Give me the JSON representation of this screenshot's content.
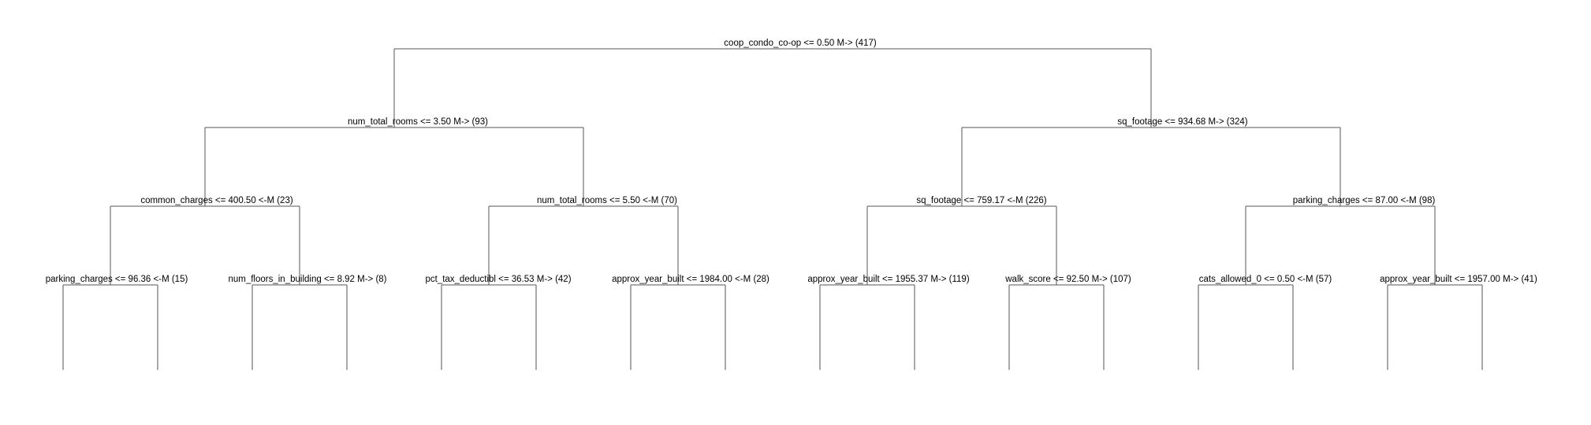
{
  "nodes": [
    {
      "id": "root",
      "label": "coop_condo_co-op <= 0.50 M-> (417)"
    },
    {
      "id": "n-l",
      "label": "num_total_rooms <= 3.50 M-> (93)"
    },
    {
      "id": "n-r",
      "label": "sq_footage <= 934.68 M-> (324)"
    },
    {
      "id": "n-ll",
      "label": "common_charges <= 400.50 <-M (23)"
    },
    {
      "id": "n-lr",
      "label": "num_total_rooms <= 5.50 <-M (70)"
    },
    {
      "id": "n-rl",
      "label": "sq_footage <= 759.17 <-M (226)"
    },
    {
      "id": "n-rr",
      "label": "parking_charges <= 87.00 <-M (98)"
    },
    {
      "id": "n-lll",
      "label": "parking_charges <= 96.36 <-M (15)"
    },
    {
      "id": "n-llr",
      "label": "num_floors_in_building <= 8.92 M-> (8)"
    },
    {
      "id": "n-lrl",
      "label": "pct_tax_deductibl <= 36.53 M-> (42)"
    },
    {
      "id": "n-lrr",
      "label": "approx_year_built <= 1984.00 <-M (28)"
    },
    {
      "id": "n-rll",
      "label": "approx_year_built <= 1955.37 M-> (119)"
    },
    {
      "id": "n-rlr",
      "label": "walk_score <= 92.50 M-> (107)"
    },
    {
      "id": "n-rrl",
      "label": "cats_allowed_0 <= 0.50 <-M (57)"
    },
    {
      "id": "n-rrr",
      "label": "approx_year_built <= 1957.00 M-> (41)"
    }
  ],
  "colors": {
    "line": "#555555",
    "text": "#000000",
    "background": "#ffffff"
  }
}
